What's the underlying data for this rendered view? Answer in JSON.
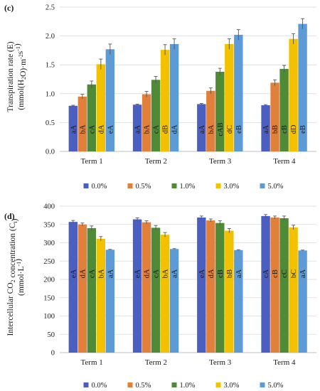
{
  "chart_data": [
    {
      "type": "bar",
      "panel": "(c)",
      "ylabel": "Transpiration rate (E)",
      "ylabel_unit": "(mmol(H2O)·m-2s-1)",
      "ylim": [
        0,
        2.5
      ],
      "yticks": [
        "0.0",
        "0.5",
        "1.0",
        "1.5",
        "2.0",
        "2.5"
      ],
      "categories": [
        "Term 1",
        "Term 2",
        "Term 3",
        "Term 4"
      ],
      "series": [
        {
          "name": "0.0%",
          "color": "#4a5fc0",
          "values": [
            0.79,
            0.81,
            0.82,
            0.8
          ],
          "errors": [
            0.01,
            0.01,
            0.01,
            0.01
          ],
          "labels": [
            "aA",
            "aA",
            "aA",
            "aA"
          ]
        },
        {
          "name": "0.5%",
          "color": "#e0803a",
          "values": [
            0.95,
            0.99,
            1.05,
            1.19
          ],
          "errors": [
            0.04,
            0.05,
            0.05,
            0.05
          ],
          "labels": [
            "bA",
            "bA",
            "bA",
            "bB"
          ]
        },
        {
          "name": "1.0%",
          "color": "#4f8a36",
          "values": [
            1.16,
            1.24,
            1.38,
            1.43
          ],
          "errors": [
            0.06,
            0.06,
            0.06,
            0.06
          ],
          "labels": [
            "cA",
            "cA",
            "cAB",
            "cB"
          ]
        },
        {
          "name": "3.0%",
          "color": "#f2c200",
          "values": [
            1.51,
            1.76,
            1.86,
            1.95
          ],
          "errors": [
            0.09,
            0.09,
            0.09,
            0.09
          ],
          "labels": [
            "dA",
            "dB",
            "dC",
            "dD"
          ]
        },
        {
          "name": "5.0%",
          "color": "#5d9bd6",
          "values": [
            1.77,
            1.86,
            2.02,
            2.21
          ],
          "errors": [
            0.09,
            0.09,
            0.09,
            0.09
          ],
          "labels": [
            "eA",
            "dA",
            "eB",
            "eB"
          ]
        }
      ]
    },
    {
      "type": "bar",
      "panel": "(d)",
      "ylabel": "Intercellular CO2 concentration (Ci)",
      "ylabel_unit": "(mmol·L-1)",
      "ylim": [
        0,
        400
      ],
      "yticks": [
        "0",
        "50",
        "100",
        "150",
        "200",
        "250",
        "300",
        "350",
        "400"
      ],
      "categories": [
        "Term 1",
        "Term 2",
        "Term 3",
        "Term 4"
      ],
      "series": [
        {
          "name": "0.0%",
          "color": "#4a5fc0",
          "values": [
            357,
            364,
            369,
            373
          ],
          "errors": [
            4,
            4,
            4,
            4
          ],
          "labels": [
            "eA",
            "eA",
            "eA",
            "cA"
          ]
        },
        {
          "name": "0.5%",
          "color": "#e0803a",
          "values": [
            350,
            356,
            361,
            369
          ],
          "errors": [
            4,
            4,
            4,
            4
          ],
          "labels": [
            "dA",
            "dA",
            "dA",
            "cB"
          ]
        },
        {
          "name": "1.0%",
          "color": "#4f8a36",
          "values": [
            340,
            341,
            354,
            367
          ],
          "errors": [
            6,
            6,
            6,
            6
          ],
          "labels": [
            "cA",
            "cA",
            "cB",
            "cC"
          ]
        },
        {
          "name": "3.0%",
          "color": "#f2c200",
          "values": [
            311,
            322,
            333,
            342
          ],
          "errors": [
            6,
            6,
            6,
            6
          ],
          "labels": [
            "bA",
            "bA",
            "bB",
            "bC"
          ]
        },
        {
          "name": "5.0%",
          "color": "#5d9bd6",
          "values": [
            281,
            283,
            280,
            279
          ],
          "errors": [
            1,
            1,
            1,
            1
          ],
          "labels": [
            "aA",
            "aA",
            "aA",
            "aA"
          ]
        }
      ]
    }
  ]
}
